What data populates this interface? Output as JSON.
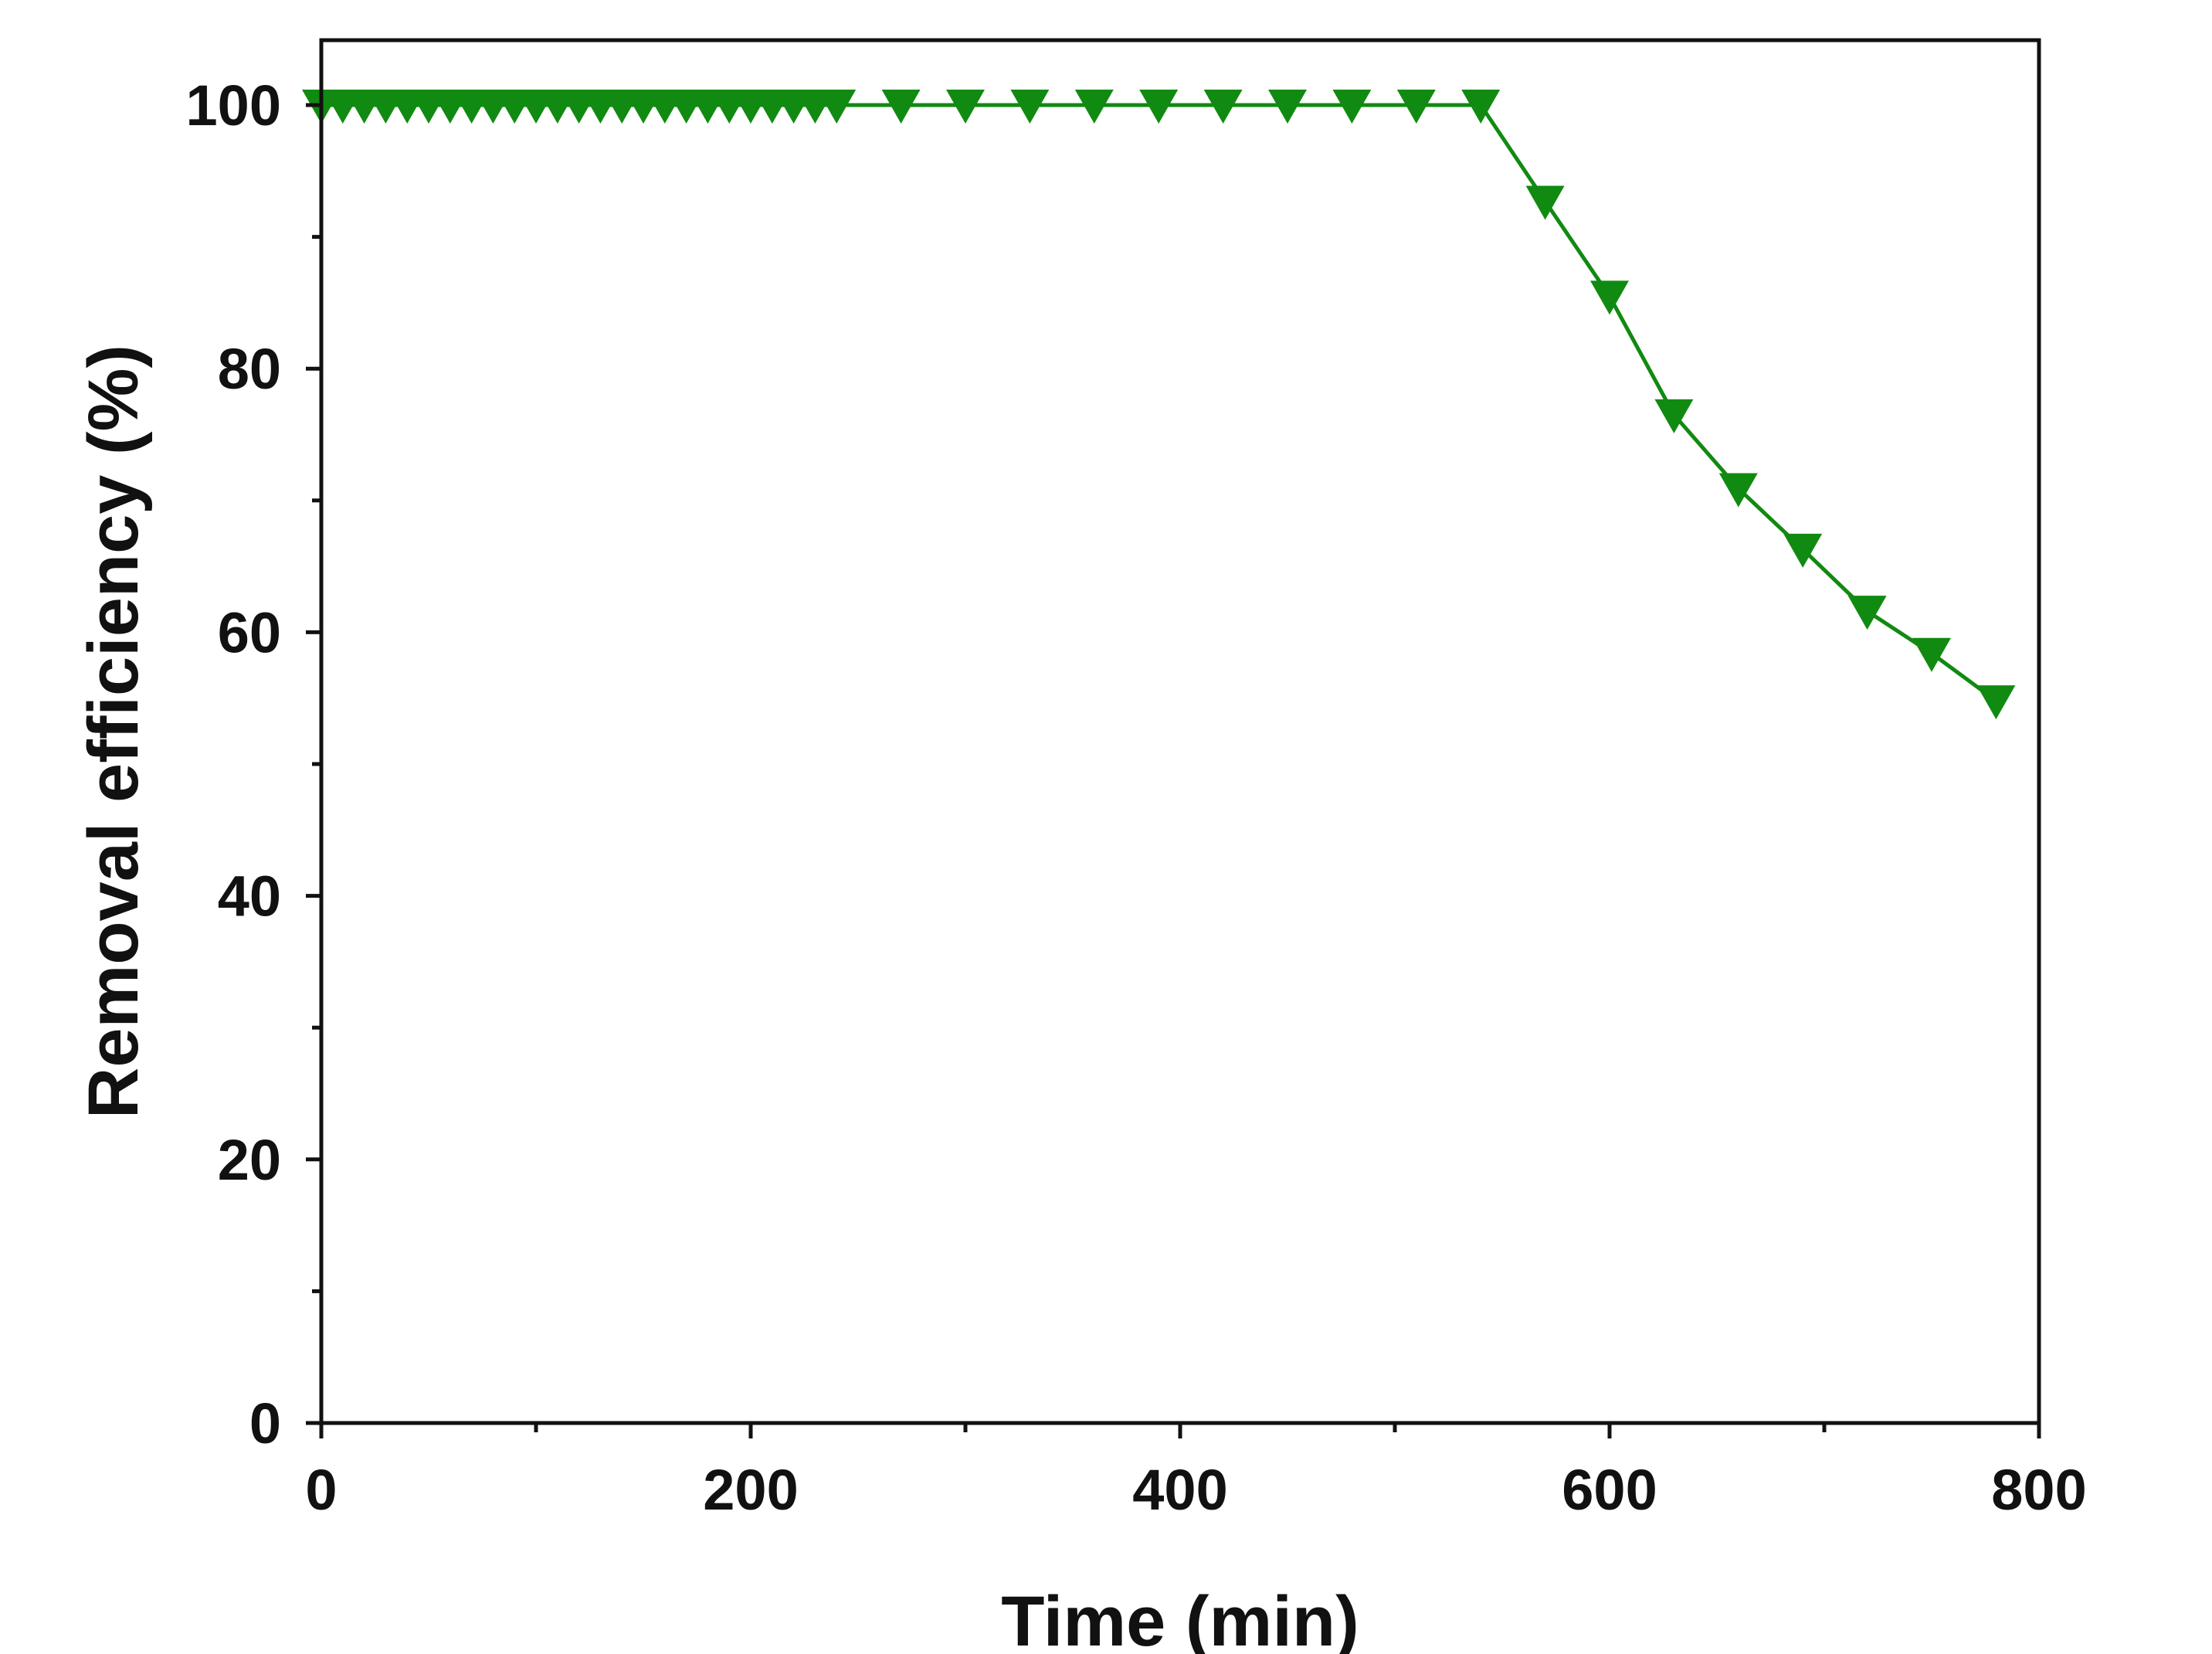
{
  "chart_data": {
    "type": "line",
    "title": "",
    "xlabel": "Time (min)",
    "ylabel": "Removal efficiency (%)",
    "xlim": [
      0,
      800
    ],
    "ylim": [
      0,
      105
    ],
    "x_ticks": [
      0,
      200,
      400,
      600,
      800
    ],
    "x_tick_labels": [
      "0",
      "200",
      "400",
      "600",
      "800"
    ],
    "y_ticks": [
      0,
      20,
      40,
      60,
      80,
      100
    ],
    "y_tick_labels": [
      "0",
      "20",
      "40",
      "60",
      "80",
      "100"
    ],
    "x_minor_ticks": [
      100,
      300,
      500,
      700
    ],
    "y_minor_ticks": [
      10,
      30,
      50,
      70,
      90
    ],
    "grid": false,
    "legend": "none",
    "marker": "down-triangle",
    "color": "#118a11",
    "series": [
      {
        "x": [
          0,
          10,
          20,
          30,
          40,
          50,
          60,
          70,
          80,
          90,
          100,
          110,
          120,
          130,
          140,
          150,
          160,
          170,
          180,
          190,
          200,
          210,
          220,
          230,
          240,
          270,
          300,
          330,
          360,
          390,
          420,
          450,
          480,
          510,
          540,
          570,
          600,
          630,
          660,
          690,
          720,
          750,
          780
        ],
        "y": [
          100,
          100,
          100,
          100,
          100,
          100,
          100,
          100,
          100,
          100,
          100,
          100,
          100,
          100,
          100,
          100,
          100,
          100,
          100,
          100,
          100,
          100,
          100,
          100,
          100,
          100,
          100,
          100,
          100,
          100,
          100,
          100,
          100,
          100,
          100,
          92.7,
          85.5,
          76.5,
          70.9,
          66.3,
          61.6,
          58.4,
          54.8
        ]
      }
    ]
  }
}
